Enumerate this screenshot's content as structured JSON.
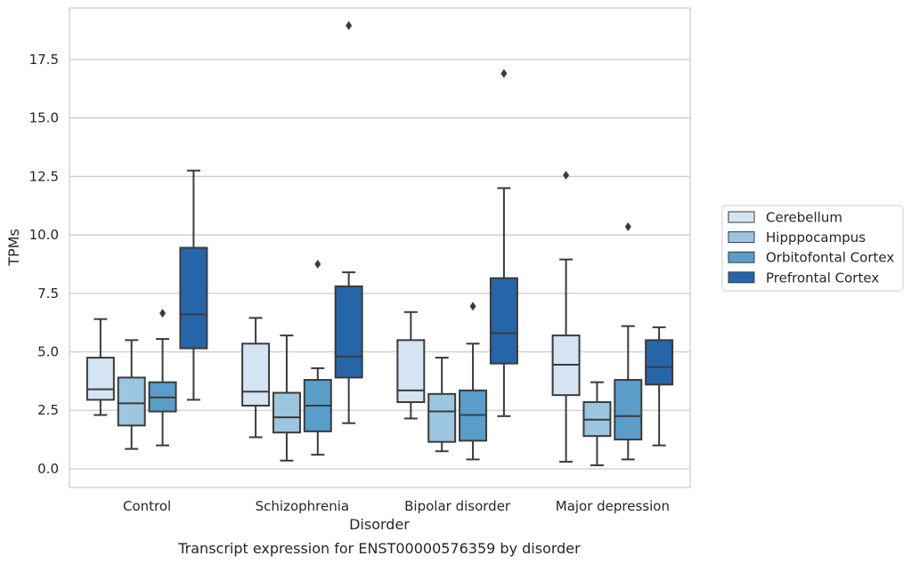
{
  "chart_data": {
    "type": "box",
    "caption": "Transcript expression for ENST00000576359 by disorder",
    "xlabel": "Disorder",
    "ylabel": "TPMs",
    "ylim": [
      -0.8,
      19.7
    ],
    "yticks": [
      0.0,
      2.5,
      5.0,
      7.5,
      10.0,
      12.5,
      15.0,
      17.5
    ],
    "ytick_labels": [
      "0.0",
      "2.5",
      "5.0",
      "7.5",
      "10.0",
      "12.5",
      "15.0",
      "17.5"
    ],
    "grid": "horizontal",
    "legend_position": "right",
    "categories": [
      "Control",
      "Schizophrenia",
      "Bipolar disorder",
      "Major depression"
    ],
    "series": [
      {
        "name": "Cerebellum",
        "color": "#d4e4f3",
        "boxes": [
          {
            "whisker_low": 2.3,
            "q1": 2.95,
            "median": 3.4,
            "q3": 4.75,
            "whisker_high": 6.4,
            "outliers": []
          },
          {
            "whisker_low": 1.35,
            "q1": 2.7,
            "median": 3.3,
            "q3": 5.35,
            "whisker_high": 6.45,
            "outliers": []
          },
          {
            "whisker_low": 2.15,
            "q1": 2.85,
            "median": 3.35,
            "q3": 5.5,
            "whisker_high": 6.7,
            "outliers": []
          },
          {
            "whisker_low": 0.3,
            "q1": 3.15,
            "median": 4.45,
            "q3": 5.7,
            "whisker_high": 8.95,
            "outliers": [
              12.55
            ]
          }
        ]
      },
      {
        "name": "Hipppocampus",
        "color": "#9cc5e0",
        "boxes": [
          {
            "whisker_low": 0.85,
            "q1": 1.85,
            "median": 2.8,
            "q3": 3.9,
            "whisker_high": 5.5,
            "outliers": []
          },
          {
            "whisker_low": 0.35,
            "q1": 1.55,
            "median": 2.2,
            "q3": 3.25,
            "whisker_high": 5.7,
            "outliers": []
          },
          {
            "whisker_low": 0.75,
            "q1": 1.15,
            "median": 2.45,
            "q3": 3.2,
            "whisker_high": 4.75,
            "outliers": []
          },
          {
            "whisker_low": 0.15,
            "q1": 1.4,
            "median": 2.1,
            "q3": 2.85,
            "whisker_high": 3.7,
            "outliers": []
          }
        ]
      },
      {
        "name": "Orbitofontal Cortex",
        "color": "#5a9dc9",
        "boxes": [
          {
            "whisker_low": 1.0,
            "q1": 2.45,
            "median": 3.05,
            "q3": 3.7,
            "whisker_high": 5.55,
            "outliers": [
              6.65
            ]
          },
          {
            "whisker_low": 0.6,
            "q1": 1.6,
            "median": 2.7,
            "q3": 3.8,
            "whisker_high": 4.3,
            "outliers": [
              8.75
            ]
          },
          {
            "whisker_low": 0.4,
            "q1": 1.2,
            "median": 2.3,
            "q3": 3.35,
            "whisker_high": 5.35,
            "outliers": [
              6.95
            ]
          },
          {
            "whisker_low": 0.4,
            "q1": 1.25,
            "median": 2.25,
            "q3": 3.8,
            "whisker_high": 6.1,
            "outliers": [
              10.35
            ]
          }
        ]
      },
      {
        "name": "Prefrontal Cortex",
        "color": "#2765a9",
        "boxes": [
          {
            "whisker_low": 2.95,
            "q1": 5.15,
            "median": 6.6,
            "q3": 9.45,
            "whisker_high": 12.75,
            "outliers": []
          },
          {
            "whisker_low": 1.95,
            "q1": 3.9,
            "median": 4.8,
            "q3": 7.8,
            "whisker_high": 8.4,
            "outliers": [
              18.95
            ]
          },
          {
            "whisker_low": 2.25,
            "q1": 4.5,
            "median": 5.8,
            "q3": 8.15,
            "whisker_high": 12.0,
            "outliers": [
              16.9
            ]
          },
          {
            "whisker_low": 1.0,
            "q1": 3.6,
            "median": 4.35,
            "q3": 5.5,
            "whisker_high": 6.05,
            "outliers": []
          }
        ]
      }
    ]
  }
}
